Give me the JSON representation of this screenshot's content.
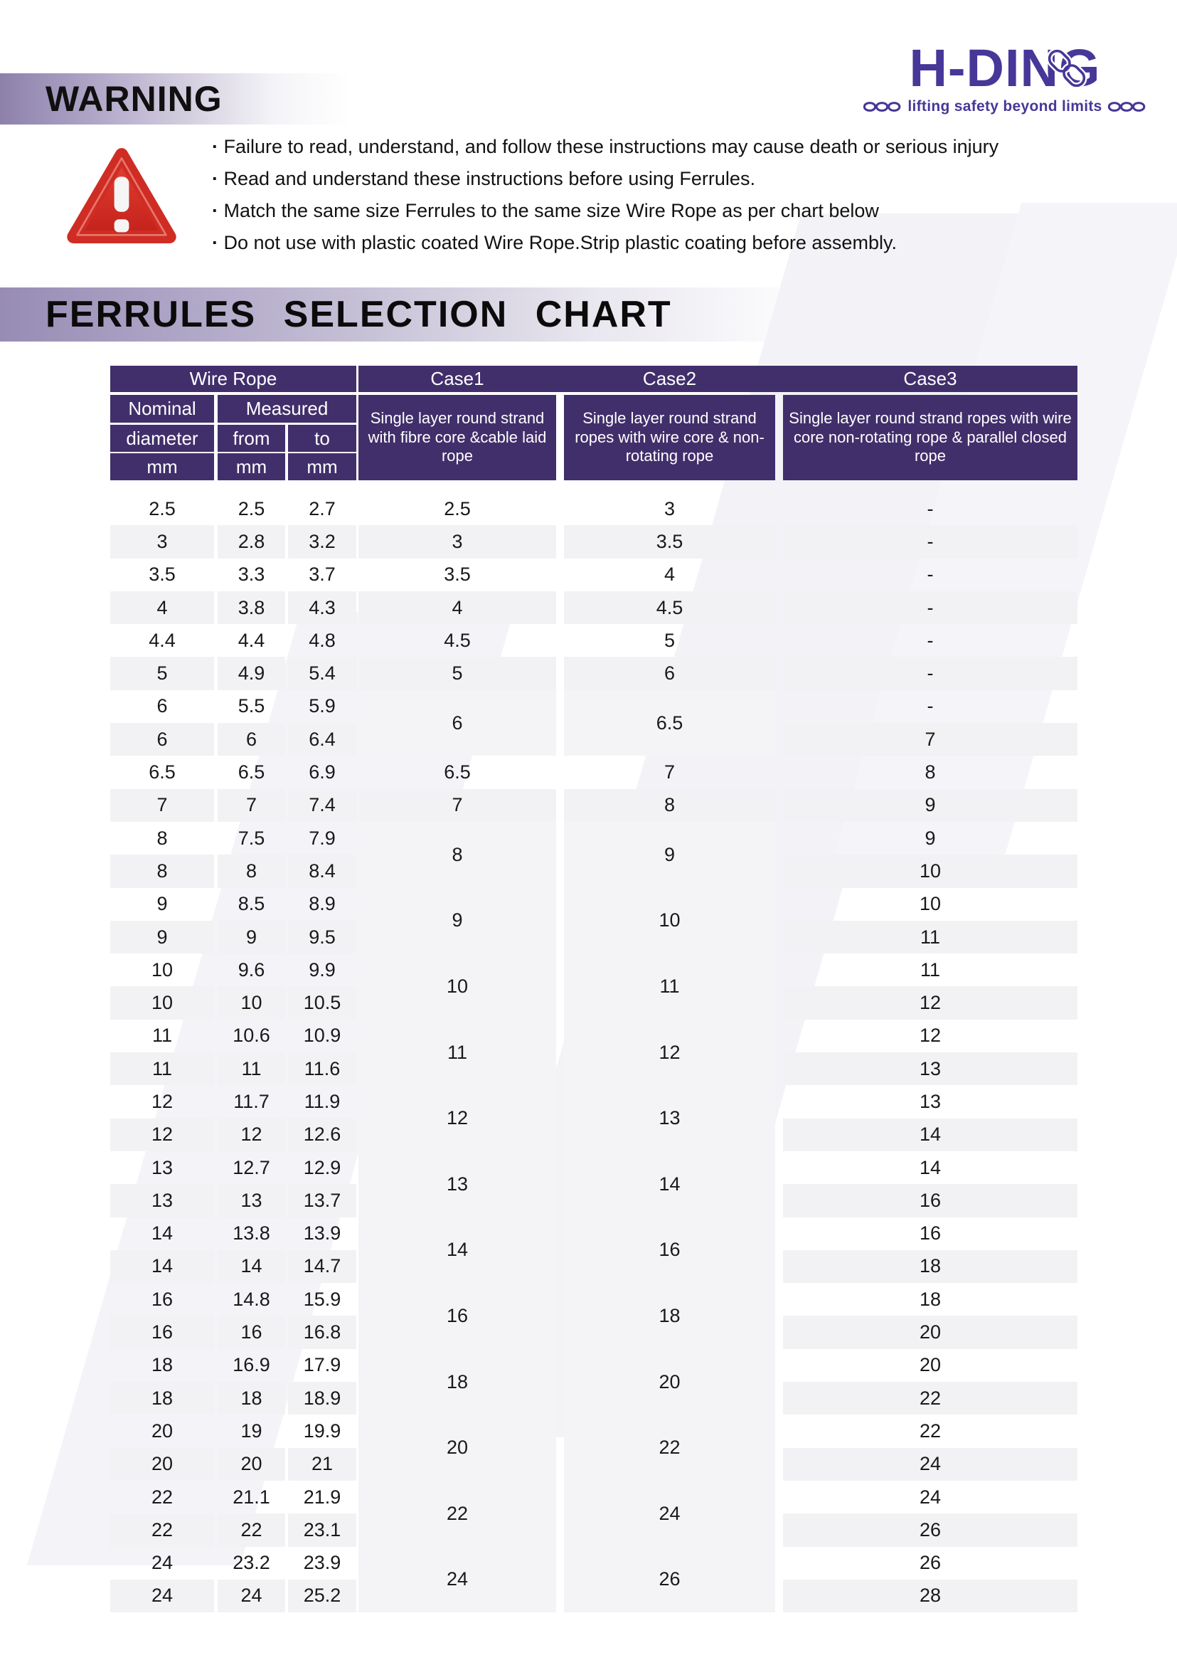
{
  "warning": {
    "title": "WARNING",
    "bullets": [
      "Failure to read, understand, and follow these instructions may cause death or serious injury",
      "Read and understand these instructions before using Ferrules.",
      "Match the same size Ferrules to the same size Wire Rope as per chart below",
      "Do not use with plastic coated Wire Rope.Strip plastic coating before assembly."
    ]
  },
  "logo": {
    "name": "H-DING",
    "tagline": "lifting safety beyond limits"
  },
  "chart": {
    "title": "FERRULES SELECTION CHART",
    "headers": {
      "wire_rope": "Wire Rope",
      "case1": "Case1",
      "case2": "Case2",
      "case3": "Case3",
      "nominal": "Nominal",
      "measured": "Measured",
      "diameter": "diameter",
      "from": "from",
      "to": "to",
      "mm": "mm",
      "case1_desc": "Single layer round strand with fibre core &cable laid rope",
      "case2_desc": "Single layer round strand ropes with wire core & non-rotating rope",
      "case3_desc": "Single layer round strand ropes with wire core non-rotating rope & parallel closed rope"
    },
    "rows": [
      {
        "n": "2.5",
        "f": "2.5",
        "t": "2.7",
        "c1": "2.5",
        "c2": "3",
        "c3": "-"
      },
      {
        "n": "3",
        "f": "2.8",
        "t": "3.2",
        "c1": "3",
        "c2": "3.5",
        "c3": "-"
      },
      {
        "n": "3.5",
        "f": "3.3",
        "t": "3.7",
        "c1": "3.5",
        "c2": "4",
        "c3": "-"
      },
      {
        "n": "4",
        "f": "3.8",
        "t": "4.3",
        "c1": "4",
        "c2": "4.5",
        "c3": "-"
      },
      {
        "n": "4.4",
        "f": "4.4",
        "t": "4.8",
        "c1": "4.5",
        "c2": "5",
        "c3": "-"
      },
      {
        "n": "5",
        "f": "4.9",
        "t": "5.4",
        "c1": "5",
        "c2": "6",
        "c3": "-"
      },
      {
        "n": "6",
        "f": "5.5",
        "t": "5.9",
        "c1": "6",
        "c2": "6.5",
        "c3": "-",
        "m": true
      },
      {
        "n": "6",
        "f": "6",
        "t": "6.4",
        "c1": null,
        "c2": null,
        "c3": "7"
      },
      {
        "n": "6.5",
        "f": "6.5",
        "t": "6.9",
        "c1": "6.5",
        "c2": "7",
        "c3": "8"
      },
      {
        "n": "7",
        "f": "7",
        "t": "7.4",
        "c1": "7",
        "c2": "8",
        "c3": "9"
      },
      {
        "n": "8",
        "f": "7.5",
        "t": "7.9",
        "c1": "8",
        "c2": "9",
        "c3": "9",
        "m": true
      },
      {
        "n": "8",
        "f": "8",
        "t": "8.4",
        "c1": null,
        "c2": null,
        "c3": "10"
      },
      {
        "n": "9",
        "f": "8.5",
        "t": "8.9",
        "c1": "9",
        "c2": "10",
        "c3": "10",
        "m": true
      },
      {
        "n": "9",
        "f": "9",
        "t": "9.5",
        "c1": null,
        "c2": null,
        "c3": "11"
      },
      {
        "n": "10",
        "f": "9.6",
        "t": "9.9",
        "c1": "10",
        "c2": "11",
        "c3": "11",
        "m": true
      },
      {
        "n": "10",
        "f": "10",
        "t": "10.5",
        "c1": null,
        "c2": null,
        "c3": "12"
      },
      {
        "n": "11",
        "f": "10.6",
        "t": "10.9",
        "c1": "11",
        "c2": "12",
        "c3": "12",
        "m": true
      },
      {
        "n": "11",
        "f": "11",
        "t": "11.6",
        "c1": null,
        "c2": null,
        "c3": "13"
      },
      {
        "n": "12",
        "f": "11.7",
        "t": "11.9",
        "c1": "12",
        "c2": "13",
        "c3": "13",
        "m": true
      },
      {
        "n": "12",
        "f": "12",
        "t": "12.6",
        "c1": null,
        "c2": null,
        "c3": "14"
      },
      {
        "n": "13",
        "f": "12.7",
        "t": "12.9",
        "c1": "13",
        "c2": "14",
        "c3": "14",
        "m": true
      },
      {
        "n": "13",
        "f": "13",
        "t": "13.7",
        "c1": null,
        "c2": null,
        "c3": "16"
      },
      {
        "n": "14",
        "f": "13.8",
        "t": "13.9",
        "c1": "14",
        "c2": "16",
        "c3": "16",
        "m": true
      },
      {
        "n": "14",
        "f": "14",
        "t": "14.7",
        "c1": null,
        "c2": null,
        "c3": "18"
      },
      {
        "n": "16",
        "f": "14.8",
        "t": "15.9",
        "c1": "16",
        "c2": "18",
        "c3": "18",
        "m": true
      },
      {
        "n": "16",
        "f": "16",
        "t": "16.8",
        "c1": null,
        "c2": null,
        "c3": "20"
      },
      {
        "n": "18",
        "f": "16.9",
        "t": "17.9",
        "c1": "18",
        "c2": "20",
        "c3": "20",
        "m": true
      },
      {
        "n": "18",
        "f": "18",
        "t": "18.9",
        "c1": null,
        "c2": null,
        "c3": "22"
      },
      {
        "n": "20",
        "f": "19",
        "t": "19.9",
        "c1": "20",
        "c2": "22",
        "c3": "22",
        "m": true
      },
      {
        "n": "20",
        "f": "20",
        "t": "21",
        "c1": null,
        "c2": null,
        "c3": "24"
      },
      {
        "n": "22",
        "f": "21.1",
        "t": "21.9",
        "c1": "22",
        "c2": "24",
        "c3": "24",
        "m": true
      },
      {
        "n": "22",
        "f": "22",
        "t": "23.1",
        "c1": null,
        "c2": null,
        "c3": "26"
      },
      {
        "n": "24",
        "f": "23.2",
        "t": "23.9",
        "c1": "24",
        "c2": "26",
        "c3": "26",
        "m": true
      },
      {
        "n": "24",
        "f": "24",
        "t": "25.2",
        "c1": null,
        "c2": null,
        "c3": "28"
      }
    ]
  },
  "colors": {
    "header_purple": "#412f6b",
    "logo_purple": "#473798",
    "row_alt_gray": "#f2f2f4",
    "merged_cell_gray": "#f4f4f6",
    "warning_red": "#d7261d"
  }
}
